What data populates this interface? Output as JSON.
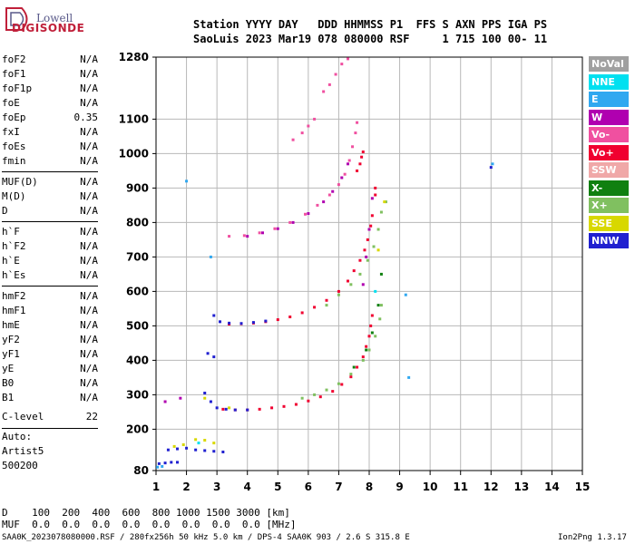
{
  "logo": {
    "top": "Lowell",
    "bottom": "DIGISONDE"
  },
  "header": {
    "line1": "Station YYYY DAY   DDD HHMMSS P1  FFS S AXN PPS IGA PS",
    "line2": "SaoLuis 2023 Mar19 078 080000 RSF     1 715 100 00- 11"
  },
  "params": {
    "group1": [
      {
        "k": "foF2",
        "v": "N/A"
      },
      {
        "k": "foF1",
        "v": "N/A"
      },
      {
        "k": "foF1p",
        "v": "N/A"
      },
      {
        "k": "foE",
        "v": "N/A"
      },
      {
        "k": "foEp",
        "v": "0.35"
      },
      {
        "k": "fxI",
        "v": "N/A"
      },
      {
        "k": "foEs",
        "v": "N/A"
      },
      {
        "k": "fmin",
        "v": "N/A"
      }
    ],
    "group2": [
      {
        "k": "MUF(D)",
        "v": "N/A"
      },
      {
        "k": "M(D)",
        "v": "N/A"
      },
      {
        "k": "D",
        "v": "N/A"
      }
    ],
    "group3": [
      {
        "k": "h`F",
        "v": "N/A"
      },
      {
        "k": "h`F2",
        "v": "N/A"
      },
      {
        "k": "h`E",
        "v": "N/A"
      },
      {
        "k": "h`Es",
        "v": "N/A"
      }
    ],
    "group4": [
      {
        "k": "hmF2",
        "v": "N/A"
      },
      {
        "k": "hmF1",
        "v": "N/A"
      },
      {
        "k": "hmE",
        "v": "N/A"
      },
      {
        "k": "yF2",
        "v": "N/A"
      },
      {
        "k": "yF1",
        "v": "N/A"
      },
      {
        "k": "yE",
        "v": "N/A"
      },
      {
        "k": "B0",
        "v": "N/A"
      },
      {
        "k": "B1",
        "v": "N/A"
      }
    ],
    "clevel": {
      "k": "C-level",
      "v": "22"
    },
    "auto": [
      "Auto:",
      "Artist5",
      "500200"
    ]
  },
  "legend": [
    {
      "label": "NoVal",
      "color": "#a0a0a0"
    },
    {
      "label": "NNE",
      "color": "#00e0f0"
    },
    {
      "label": "E",
      "color": "#30a8f0"
    },
    {
      "label": "W",
      "color": "#b000b0"
    },
    {
      "label": "Vo-",
      "color": "#f050a0"
    },
    {
      "label": "Vo+",
      "color": "#f00030"
    },
    {
      "label": "SSW",
      "color": "#f0a8a8"
    },
    {
      "label": "X-",
      "color": "#108010"
    },
    {
      "label": "X+",
      "color": "#80c060"
    },
    {
      "label": "SSE",
      "color": "#d8d800"
    },
    {
      "label": "NNW",
      "color": "#2020d0"
    }
  ],
  "bottom": {
    "d_row": "D    100  200  400  600  800 1000 1500 3000 [km]",
    "muf_row": "MUF  0.0  0.0  0.0  0.0  0.0  0.0  0.0  0.0 [MHz]"
  },
  "footer": {
    "left": "SAA0K_2023078080000.RSF / 280fx256h 50 kHz 5.0 km / DPS-4 SAA0K 903 / 2.6 S 315.8 E",
    "right": "Ion2Png 1.3.17"
  },
  "chart_data": {
    "type": "scatter",
    "xlim": [
      1,
      15
    ],
    "ylim": [
      80,
      1280
    ],
    "x_ticks": [
      1,
      2,
      3,
      4,
      5,
      6,
      7,
      8,
      9,
      10,
      11,
      12,
      13,
      14,
      15
    ],
    "y_ticks": [
      80,
      200,
      300,
      400,
      500,
      600,
      700,
      800,
      900,
      1000,
      1100,
      1280
    ],
    "grid": true,
    "series": [
      {
        "name": "Vo+",
        "color": "#f00030",
        "points": [
          [
            3.2,
            258
          ],
          [
            3.6,
            256
          ],
          [
            4.0,
            256
          ],
          [
            4.4,
            258
          ],
          [
            4.8,
            262
          ],
          [
            5.2,
            266
          ],
          [
            5.6,
            272
          ],
          [
            6.0,
            282
          ],
          [
            6.4,
            294
          ],
          [
            6.8,
            310
          ],
          [
            7.1,
            330
          ],
          [
            7.4,
            352
          ],
          [
            7.6,
            380
          ],
          [
            7.8,
            410
          ],
          [
            7.9,
            440
          ],
          [
            8.0,
            470
          ],
          [
            8.05,
            500
          ],
          [
            8.1,
            530
          ],
          [
            3.4,
            505
          ],
          [
            3.8,
            506
          ],
          [
            4.2,
            508
          ],
          [
            4.6,
            512
          ],
          [
            5.0,
            518
          ],
          [
            5.4,
            526
          ],
          [
            5.8,
            538
          ],
          [
            6.2,
            554
          ],
          [
            6.6,
            574
          ],
          [
            7.0,
            600
          ],
          [
            7.3,
            630
          ],
          [
            7.5,
            660
          ],
          [
            7.7,
            690
          ],
          [
            7.85,
            720
          ],
          [
            7.95,
            750
          ],
          [
            8.05,
            790
          ],
          [
            8.1,
            820
          ],
          [
            7.6,
            950
          ],
          [
            7.7,
            970
          ],
          [
            7.75,
            990
          ],
          [
            7.8,
            1005
          ],
          [
            8.2,
            900
          ],
          [
            8.2,
            880
          ]
        ]
      },
      {
        "name": "Vo-",
        "color": "#f050a0",
        "points": [
          [
            3.4,
            760
          ],
          [
            3.9,
            762
          ],
          [
            4.4,
            770
          ],
          [
            4.9,
            782
          ],
          [
            5.4,
            800
          ],
          [
            5.9,
            824
          ],
          [
            6.3,
            850
          ],
          [
            6.7,
            880
          ],
          [
            7.0,
            910
          ],
          [
            7.2,
            940
          ],
          [
            7.35,
            980
          ],
          [
            7.45,
            1020
          ],
          [
            7.55,
            1060
          ],
          [
            7.6,
            1090
          ],
          [
            5.5,
            1040
          ],
          [
            5.8,
            1060
          ],
          [
            6.0,
            1080
          ],
          [
            6.2,
            1100
          ],
          [
            6.5,
            1180
          ],
          [
            6.7,
            1200
          ],
          [
            6.9,
            1230
          ],
          [
            7.1,
            1260
          ],
          [
            7.3,
            1275
          ]
        ]
      },
      {
        "name": "X+",
        "color": "#80c060",
        "points": [
          [
            5.8,
            290
          ],
          [
            6.2,
            300
          ],
          [
            6.6,
            314
          ],
          [
            7.0,
            332
          ],
          [
            7.4,
            360
          ],
          [
            7.8,
            400
          ],
          [
            8.0,
            430
          ],
          [
            8.2,
            470
          ],
          [
            8.35,
            520
          ],
          [
            8.4,
            560
          ],
          [
            6.6,
            560
          ],
          [
            7.0,
            590
          ],
          [
            7.4,
            620
          ],
          [
            7.7,
            650
          ],
          [
            7.95,
            690
          ],
          [
            8.15,
            730
          ],
          [
            8.3,
            780
          ],
          [
            8.4,
            830
          ],
          [
            8.55,
            860
          ]
        ]
      },
      {
        "name": "NNW",
        "color": "#2020d0",
        "points": [
          [
            2.6,
            305
          ],
          [
            2.8,
            280
          ],
          [
            3.0,
            262
          ],
          [
            3.3,
            258
          ],
          [
            3.6,
            256
          ],
          [
            4.0,
            256
          ],
          [
            2.9,
            530
          ],
          [
            3.1,
            512
          ],
          [
            3.4,
            508
          ],
          [
            3.8,
            507
          ],
          [
            4.2,
            510
          ],
          [
            4.6,
            514
          ],
          [
            1.4,
            140
          ],
          [
            1.7,
            143
          ],
          [
            2.0,
            145
          ],
          [
            2.3,
            140
          ],
          [
            2.6,
            138
          ],
          [
            2.9,
            136
          ],
          [
            3.2,
            134
          ],
          [
            1.1,
            100
          ],
          [
            1.3,
            102
          ],
          [
            1.5,
            104
          ],
          [
            1.7,
            104
          ],
          [
            2.7,
            420
          ],
          [
            2.9,
            410
          ],
          [
            12.0,
            960
          ]
        ]
      },
      {
        "name": "W",
        "color": "#b000b0",
        "points": [
          [
            4.0,
            760
          ],
          [
            4.5,
            770
          ],
          [
            5.0,
            782
          ],
          [
            5.5,
            800
          ],
          [
            6.0,
            826
          ],
          [
            6.5,
            860
          ],
          [
            6.8,
            890
          ],
          [
            7.1,
            930
          ],
          [
            7.3,
            970
          ],
          [
            7.8,
            620
          ],
          [
            7.9,
            700
          ],
          [
            8.0,
            780
          ],
          [
            8.1,
            870
          ],
          [
            1.8,
            290
          ],
          [
            1.3,
            280
          ]
        ]
      },
      {
        "name": "SSE",
        "color": "#d8d800",
        "points": [
          [
            2.3,
            170
          ],
          [
            2.6,
            168
          ],
          [
            2.9,
            160
          ],
          [
            1.6,
            150
          ],
          [
            1.9,
            155
          ],
          [
            2.6,
            290
          ],
          [
            3.4,
            262
          ],
          [
            8.3,
            720
          ],
          [
            8.5,
            860
          ]
        ]
      },
      {
        "name": "E",
        "color": "#30a8f0",
        "points": [
          [
            1.05,
            90
          ],
          [
            1.2,
            92
          ],
          [
            2.0,
            920
          ],
          [
            9.2,
            590
          ],
          [
            9.3,
            350
          ],
          [
            12.05,
            970
          ],
          [
            2.8,
            700
          ]
        ]
      },
      {
        "name": "X-",
        "color": "#108010",
        "points": [
          [
            7.5,
            380
          ],
          [
            7.9,
            430
          ],
          [
            8.1,
            480
          ],
          [
            8.3,
            560
          ],
          [
            8.4,
            650
          ]
        ]
      },
      {
        "name": "NNE",
        "color": "#00e0f0",
        "points": [
          [
            8.2,
            600
          ],
          [
            2.4,
            160
          ]
        ]
      }
    ]
  }
}
